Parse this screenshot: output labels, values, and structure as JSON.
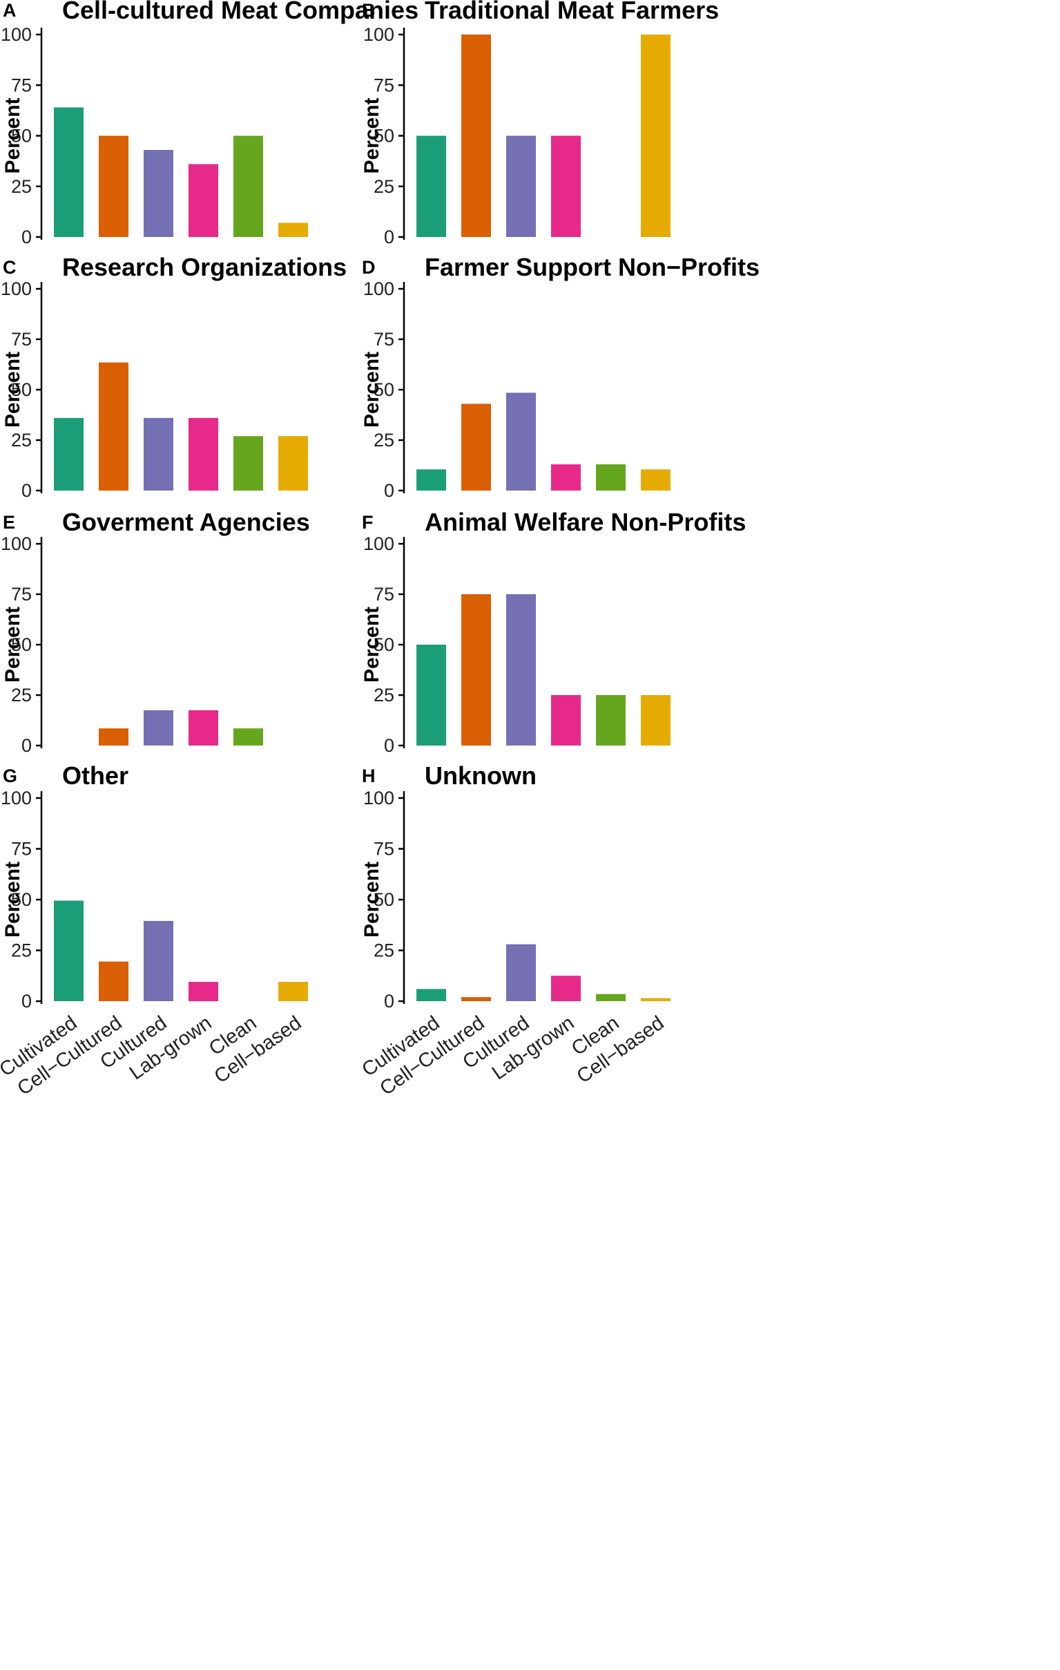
{
  "chart_data": {
    "type": "bar",
    "categories": [
      "Cultivated",
      "Cell−Cultured",
      "Cultured",
      "Lab-grown",
      "Clean",
      "Cell−based"
    ],
    "colors": [
      "#1b9e77",
      "#d95f02",
      "#7570b3",
      "#e7298a",
      "#66a61e",
      "#e6ab02"
    ],
    "ylabel": "Percent",
    "ylim": [
      0,
      100
    ],
    "yticks": [
      0,
      25,
      50,
      75,
      100
    ],
    "panels": [
      {
        "label": "A",
        "title": "Cell-cultured Meat Companies",
        "values": [
          64,
          50,
          43,
          36,
          50,
          7
        ]
      },
      {
        "label": "B",
        "title": "Traditional Meat Farmers",
        "values": [
          50,
          100,
          50,
          50,
          0,
          100
        ]
      },
      {
        "label": "C",
        "title": "Research Organizations",
        "values": [
          36,
          63.5,
          36,
          36,
          27,
          27
        ]
      },
      {
        "label": "D",
        "title": "Farmer Support Non−Profits",
        "values": [
          10.5,
          43,
          48.5,
          13,
          13,
          10.5
        ]
      },
      {
        "label": "E",
        "title": "Goverment Agencies",
        "values": [
          0,
          8.5,
          17.5,
          17.5,
          8.5,
          0
        ]
      },
      {
        "label": "F",
        "title": "Animal Welfare Non-Profits",
        "values": [
          50,
          75,
          75,
          25,
          25,
          25
        ]
      },
      {
        "label": "G",
        "title": "Other",
        "values": [
          49.5,
          19.5,
          39.5,
          9.5,
          0,
          9.5
        ]
      },
      {
        "label": "H",
        "title": "Unknown",
        "values": [
          6,
          2,
          28,
          12.5,
          3.5,
          1.5
        ]
      }
    ]
  }
}
